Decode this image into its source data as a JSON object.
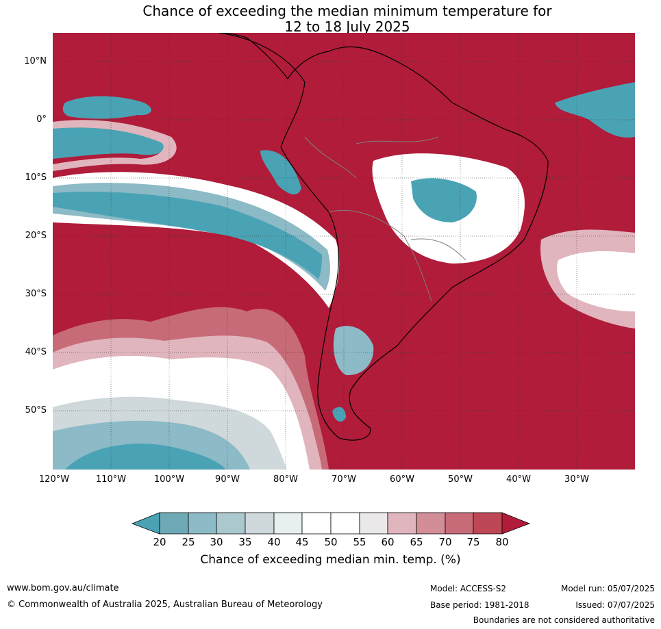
{
  "header": {
    "title_line1": "Chance of exceeding the median minimum temperature for",
    "title_line2": "12 to 18 July 2025"
  },
  "map": {
    "lat_labels": [
      "10°N",
      "0°",
      "10°S",
      "20°S",
      "30°S",
      "40°S",
      "50°S"
    ],
    "lon_labels": [
      "120°W",
      "110°W",
      "100°W",
      "90°W",
      "80°W",
      "70°W",
      "60°W",
      "50°W",
      "40°W",
      "30°W"
    ],
    "colors": {
      "background_high": "#b01c3a",
      "land_outline": "#000000",
      "border": "#808080",
      "grid": "#333333"
    }
  },
  "colorbar": {
    "label": "Chance of exceeding median min. temp. (%)",
    "ticks": [
      "20",
      "25",
      "30",
      "35",
      "40",
      "45",
      "50",
      "55",
      "60",
      "65",
      "70",
      "75",
      "80"
    ],
    "colors": [
      "#4aa3b4",
      "#6eaab6",
      "#8cbac6",
      "#abc8cf",
      "#cfd8db",
      "#e8eff1",
      "#ffffff",
      "#ffffff",
      "#ebe8e9",
      "#e0b5bd",
      "#d38d97",
      "#c76b78",
      "#bd4755",
      "#b01c3a"
    ]
  },
  "footer": {
    "website": "www.bom.gov.au/climate",
    "copyright": "© Commonwealth of Australia 2025, Australian Bureau of Meteorology",
    "model": "Model: ACCESS-S2",
    "base_period": "Base period: 1981-2018",
    "model_run": "Model run: 05/07/2025",
    "issued": "Issued: 07/07/2025",
    "disclaimer": "Boundaries are not considered authoritative"
  }
}
